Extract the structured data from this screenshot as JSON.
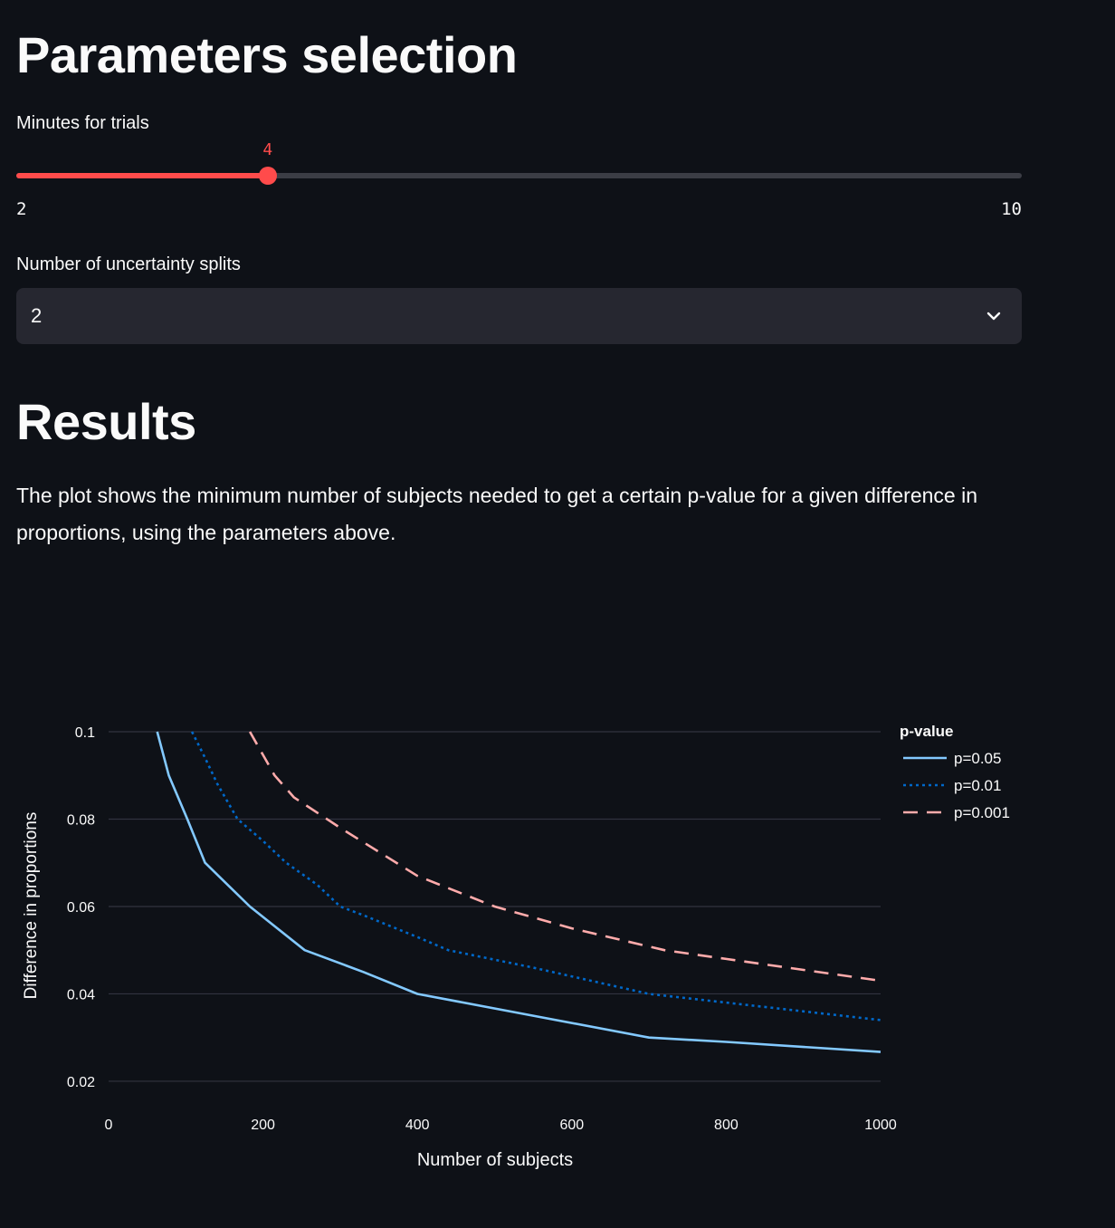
{
  "params": {
    "heading": "Parameters selection",
    "minutes": {
      "label": "Minutes for trials",
      "value": 4,
      "min": 2,
      "max": 10,
      "value_text": "4",
      "min_text": "2",
      "max_text": "10"
    },
    "splits": {
      "label": "Number of uncertainty splits",
      "selected": "2"
    }
  },
  "results": {
    "heading": "Results",
    "description": "The plot shows the minimum number of subjects needed to get a certain p-value for a given difference in proportions, using the parameters above."
  },
  "colors": {
    "accent": "#ff4b4b",
    "background": "#0e1117",
    "input_bg": "#262730",
    "grid": "#31333f"
  },
  "chart_data": {
    "type": "line",
    "xlabel": "Number of subjects",
    "ylabel": "Difference in proportions",
    "xlim": [
      0,
      1000
    ],
    "ylim": [
      0.0175,
      0.1
    ],
    "xticks": [
      0,
      200,
      400,
      600,
      800,
      1000
    ],
    "yticks": [
      0.02,
      0.04,
      0.06,
      0.08,
      0.1
    ],
    "ytick_labels": [
      "0.02",
      "0.04",
      "0.06",
      "0.08",
      "0.1"
    ],
    "grid": "horizontal",
    "legend_title": "p-value",
    "legend_position": "top-right",
    "series": [
      {
        "name": "p=0.05",
        "color": "#83c9ff",
        "dash": "solid",
        "points": [
          [
            63,
            0.1
          ],
          [
            78,
            0.09
          ],
          [
            102,
            0.08
          ],
          [
            125,
            0.07
          ],
          [
            183,
            0.06
          ],
          [
            254,
            0.05
          ],
          [
            330,
            0.045
          ],
          [
            400,
            0.04
          ],
          [
            550,
            0.035
          ],
          [
            700,
            0.03
          ],
          [
            800,
            0.029
          ],
          [
            1000,
            0.0267
          ]
        ]
      },
      {
        "name": "p=0.01",
        "color": "#0068c9",
        "dash": "dotted",
        "points": [
          [
            108,
            0.1
          ],
          [
            125,
            0.094
          ],
          [
            141,
            0.088
          ],
          [
            167,
            0.08
          ],
          [
            200,
            0.075
          ],
          [
            230,
            0.07
          ],
          [
            270,
            0.065
          ],
          [
            300,
            0.06
          ],
          [
            330,
            0.058
          ],
          [
            400,
            0.053
          ],
          [
            440,
            0.05
          ],
          [
            550,
            0.046
          ],
          [
            700,
            0.04
          ],
          [
            800,
            0.038
          ],
          [
            1000,
            0.034
          ]
        ]
      },
      {
        "name": "p=0.001",
        "color": "#ffabab",
        "dash": "dashed",
        "points": [
          [
            183,
            0.1
          ],
          [
            215,
            0.09
          ],
          [
            240,
            0.085
          ],
          [
            300,
            0.078
          ],
          [
            400,
            0.067
          ],
          [
            500,
            0.06
          ],
          [
            600,
            0.055
          ],
          [
            720,
            0.05
          ],
          [
            800,
            0.048
          ],
          [
            1000,
            0.043
          ]
        ]
      }
    ]
  }
}
